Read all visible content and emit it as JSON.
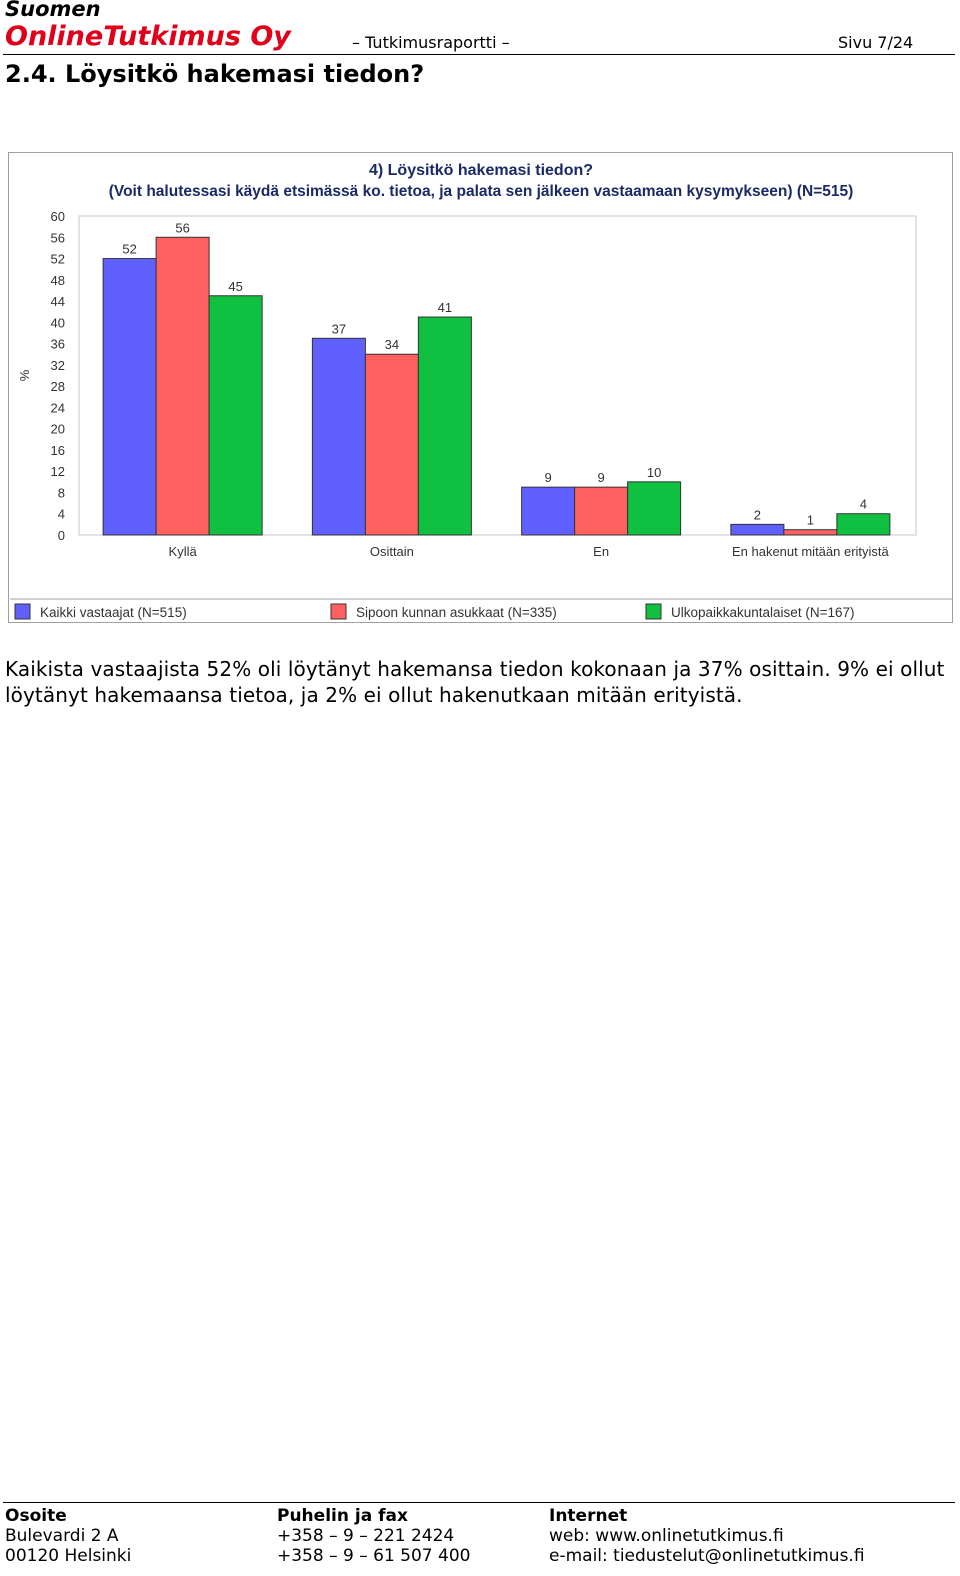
{
  "header": {
    "company_line1": "Suomen",
    "company_line2": "OnlineTutkimus Oy",
    "doc_type": "– Tutkimusraportti –",
    "page": "Sivu 7/24"
  },
  "section": {
    "heading": "2.4. Löysitkö hakemasi tiedon?"
  },
  "chart_data": {
    "type": "bar",
    "title": "4) Löysitkö hakemasi tiedon?",
    "subtitle": "(Voit halutessasi käydä etsimässä ko. tietoa, ja palata sen jälkeen vastaamaan kysymykseen) (N=515)",
    "ylabel": "%",
    "ylim": [
      0,
      60
    ],
    "yticks": [
      0,
      4,
      8,
      12,
      16,
      20,
      24,
      28,
      32,
      36,
      40,
      44,
      48,
      52,
      56,
      60
    ],
    "categories": [
      "Kyllä",
      "Osittain",
      "En",
      "En hakenut mitään erityistä"
    ],
    "series": [
      {
        "name": "Kaikki vastaajat (N=515)",
        "color": "#6060ff",
        "values": [
          52,
          37,
          9,
          2
        ]
      },
      {
        "name": "Sipoon kunnan asukkaat (N=335)",
        "color": "#ff6060",
        "values": [
          56,
          34,
          9,
          1
        ]
      },
      {
        "name": "Ulkopaikkakuntalaiset (N=167)",
        "color": "#10c040",
        "values": [
          45,
          41,
          10,
          4
        ]
      }
    ],
    "grid": false,
    "legend_position": "bottom"
  },
  "body_text": "Kaikista vastaajista 52% oli löytänyt hakemansa tiedon kokonaan ja 37% osittain. 9% ei ollut löytänyt hakemaansa tietoa, ja 2% ei ollut hakenutkaan mitään erityistä.",
  "footer": {
    "address": {
      "heading": "Osoite",
      "line1": "Bulevardi 2 A",
      "line2": "00120 Helsinki"
    },
    "phone": {
      "heading": "Puhelin ja fax",
      "line1": "+358 – 9 – 221 2424",
      "line2": "+358 – 9 – 61 507 400"
    },
    "internet": {
      "heading": "Internet",
      "line1": "web: www.onlinetutkimus.fi",
      "line2": "e-mail: tiedustelut@onlinetutkimus.fi"
    }
  }
}
